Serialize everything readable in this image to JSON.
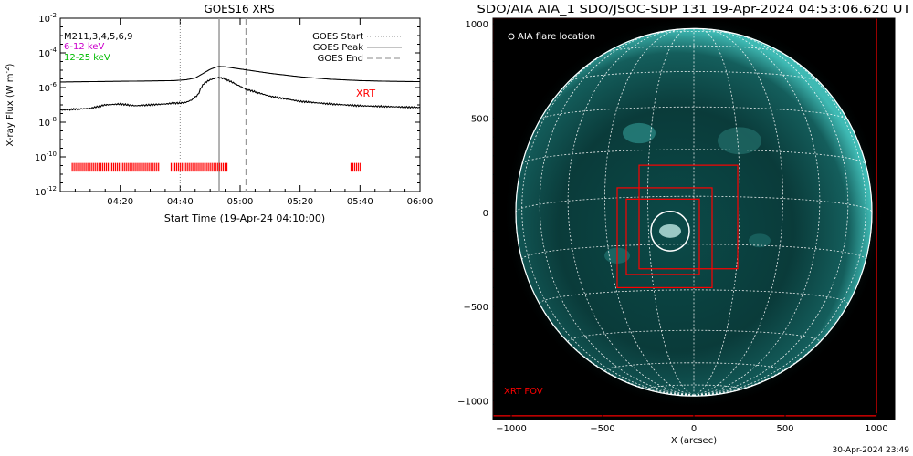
{
  "goes_panel": {
    "title": "GOES16 XRS",
    "legend_top_left": {
      "line1": "M2",
      "line1_b": "11,3,4,5,6,9",
      "line2": "6-12 keV",
      "line3": "12-25 keV"
    },
    "legend_top_right": [
      "GOES Start",
      "GOES Peak",
      "GOES End"
    ],
    "xrt_label": "XRT",
    "colors": {
      "xrt": "#ff0000",
      "line_6_12": "#cc00cc",
      "line_12_25": "#00cc00"
    }
  },
  "aia_panel": {
    "title": "SDO/AIA AIA_1 SDO/JSOC-SDP 131 19-Apr-2024 04:53:06.620 UT",
    "flare_label": "AIA flare location",
    "fov_label": "XRT FOV",
    "xlabel": "X (arcsec)",
    "colors": {
      "fov": "#ff0000",
      "disk": "#0a3a3a",
      "limb": "#4fe0d8"
    }
  },
  "footer": {
    "timestamp": "30-Apr-2024 23:49"
  },
  "chart_data": [
    {
      "type": "line",
      "title": "GOES16 XRS",
      "xlabel": "Start Time (19-Apr-24 04:10:00)",
      "ylabel": "X-ray Flux (W m^-2)",
      "ylabel_parts": {
        "main": "X-ray Flux (W m",
        "sup": "-2",
        "end": ")"
      },
      "y_scale": "log",
      "ylim_exp": [
        -12,
        -2
      ],
      "y_tick_exp": [
        -12,
        -10,
        -8,
        -6,
        -4,
        -2
      ],
      "x_ticks": [
        "04:20",
        "04:40",
        "05:00",
        "05:20",
        "05:40",
        "06:00"
      ],
      "x_tick_minutes": [
        20,
        40,
        60,
        80,
        100,
        120
      ],
      "x_range_minutes": [
        0,
        120
      ],
      "vlines_minutes": {
        "goes_start": 40,
        "goes_peak": 53,
        "goes_end": 62
      },
      "series": [
        {
          "name": "6-12 keV",
          "color": "#000000",
          "x": [
            0,
            10,
            20,
            30,
            38,
            42,
            45,
            48,
            50,
            52,
            53,
            55,
            58,
            62,
            70,
            80,
            90,
            100,
            110,
            120
          ],
          "y_exp": [
            -5.68,
            -5.66,
            -5.64,
            -5.62,
            -5.6,
            -5.55,
            -5.45,
            -5.15,
            -4.95,
            -4.82,
            -4.78,
            -4.8,
            -4.88,
            -4.98,
            -5.18,
            -5.38,
            -5.52,
            -5.6,
            -5.64,
            -5.66
          ]
        },
        {
          "name": "12-25 keV",
          "color": "#000000",
          "x": [
            0,
            10,
            15,
            20,
            25,
            30,
            35,
            38,
            40,
            42,
            44,
            46,
            47,
            48,
            50,
            52,
            53,
            55,
            58,
            62,
            70,
            80,
            90,
            100,
            110,
            120
          ],
          "y_exp": [
            -7.3,
            -7.2,
            -7.0,
            -6.95,
            -7.05,
            -7.0,
            -6.95,
            -6.9,
            -6.9,
            -6.85,
            -6.7,
            -6.4,
            -6.0,
            -5.75,
            -5.55,
            -5.45,
            -5.42,
            -5.5,
            -5.75,
            -6.1,
            -6.5,
            -6.8,
            -6.95,
            -7.05,
            -7.1,
            -7.15
          ]
        }
      ],
      "xrt_segments_minutes": [
        [
          4,
          33
        ],
        [
          37,
          56
        ],
        [
          97,
          100
        ]
      ]
    },
    {
      "type": "scatter",
      "title": "SDO/AIA AIA_1 SDO/JSOC-SDP 131 19-Apr-2024 04:53:06.620 UT",
      "xlabel": "X (arcsec)",
      "xlim": [
        -1100,
        1100
      ],
      "ylim": [
        -1100,
        1030
      ],
      "x_ticks": [
        -1000,
        -500,
        0,
        500,
        1000
      ],
      "y_ticks": [
        -1000,
        -500,
        0,
        500,
        1000
      ],
      "solar_radius_arcsec": 975,
      "flare_location": {
        "x": -130,
        "y": -100,
        "radius": 105
      },
      "xrt_fov_boxes": [
        {
          "x0": -300,
          "y0": -300,
          "x1": 240,
          "y1": 250
        },
        {
          "x0": -420,
          "y0": -400,
          "x1": 100,
          "y1": 130
        },
        {
          "x0": -370,
          "y0": -330,
          "x1": 30,
          "y1": 70
        },
        {
          "x0": -1100,
          "y0": -1080,
          "x1": 1000,
          "y1": 1030
        }
      ]
    }
  ]
}
